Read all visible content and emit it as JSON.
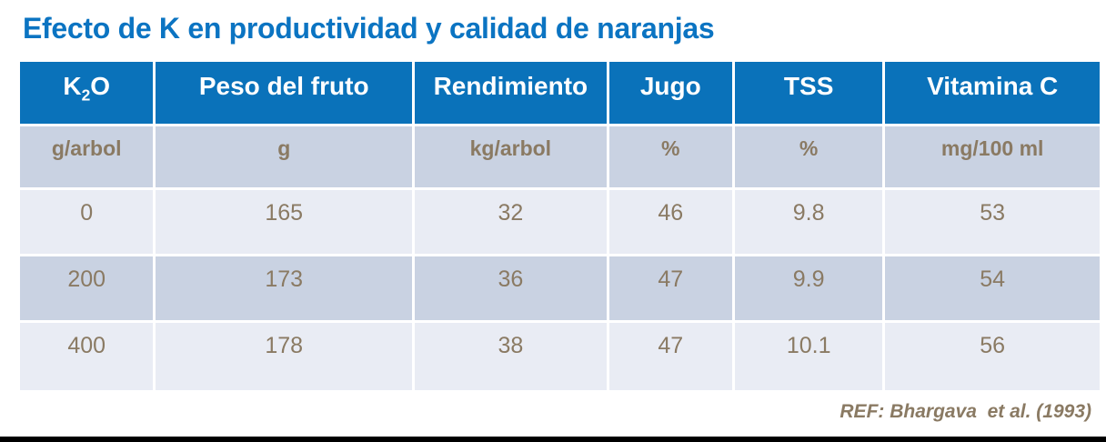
{
  "slide": {
    "title": "Efecto de K en productividad y calidad de naranjas",
    "reference": "REF: Bhargava  et al. (1993)"
  },
  "table": {
    "header_k2o": {
      "base": "K",
      "sub": "2",
      "tail": "O"
    },
    "columns": [
      {
        "key": "k2o",
        "header": "K2O",
        "unit": "g/arbol"
      },
      {
        "key": "peso_del_fruto",
        "header": "Peso del fruto",
        "unit": "g"
      },
      {
        "key": "rendimiento",
        "header": "Rendimiento",
        "unit": "kg/arbol"
      },
      {
        "key": "jugo",
        "header": "Jugo",
        "unit": "%"
      },
      {
        "key": "tss",
        "header": "TSS",
        "unit": "%"
      },
      {
        "key": "vitamina_c",
        "header": "Vitamina C",
        "unit": "mg/100 ml"
      }
    ],
    "rows": [
      [
        "0",
        "165",
        "32",
        "46",
        "9.8",
        "53"
      ],
      [
        "200",
        "173",
        "36",
        "47",
        "9.9",
        "54"
      ],
      [
        "400",
        "178",
        "38",
        "47",
        "10.1",
        "56"
      ]
    ]
  },
  "chart_data": {
    "type": "table",
    "title": "Efecto de K en productividad y calidad de naranjas",
    "columns": [
      "K2O",
      "Peso del fruto",
      "Rendimiento",
      "Jugo",
      "TSS",
      "Vitamina C"
    ],
    "units": [
      "g/arbol",
      "g",
      "kg/arbol",
      "%",
      "%",
      "mg/100 ml"
    ],
    "rows": [
      [
        0,
        165,
        32,
        46,
        9.8,
        53
      ],
      [
        200,
        173,
        36,
        47,
        9.9,
        54
      ],
      [
        400,
        178,
        38,
        47,
        10.1,
        56
      ]
    ],
    "source": "REF: Bhargava et al. (1993)"
  },
  "colors": {
    "title_blue": "#0b74c2",
    "header_blue": "#0a72ba",
    "band_dark": "#c9d2e2",
    "band_light": "#e9ecf4",
    "body_text": "#8a7a63",
    "header_text": "#ffffff",
    "bottom_line": "#000000"
  }
}
